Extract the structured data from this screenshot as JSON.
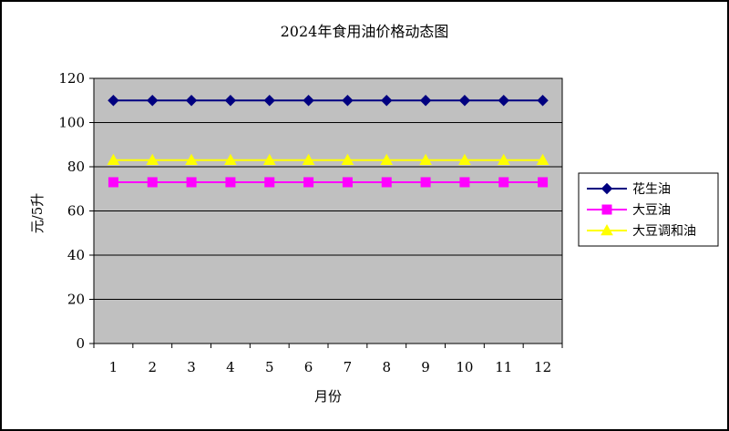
{
  "chart_data": {
    "type": "line",
    "title": "2024年食用油价格动态图",
    "xlabel": "月份",
    "ylabel": "元/5升",
    "categories": [
      "1",
      "2",
      "3",
      "4",
      "5",
      "6",
      "7",
      "8",
      "9",
      "10",
      "11",
      "12"
    ],
    "ylim": [
      0,
      120
    ],
    "yticks": [
      0,
      20,
      40,
      60,
      80,
      100,
      120
    ],
    "grid": true,
    "legend_position": "right",
    "plot_background": "#c0c0c0",
    "series": [
      {
        "name": "花生油",
        "values": [
          110,
          110,
          110,
          110,
          110,
          110,
          110,
          110,
          110,
          110,
          110,
          110
        ],
        "color": "#000080",
        "marker": "diamond"
      },
      {
        "name": "大豆油",
        "values": [
          73,
          73,
          73,
          73,
          73,
          73,
          73,
          73,
          73,
          73,
          73,
          73
        ],
        "color": "#ff00ff",
        "marker": "square"
      },
      {
        "name": "大豆调和油",
        "values": [
          83,
          83,
          83,
          83,
          83,
          83,
          83,
          83,
          83,
          83,
          83,
          83
        ],
        "color": "#ffff00",
        "marker": "triangle"
      }
    ]
  }
}
